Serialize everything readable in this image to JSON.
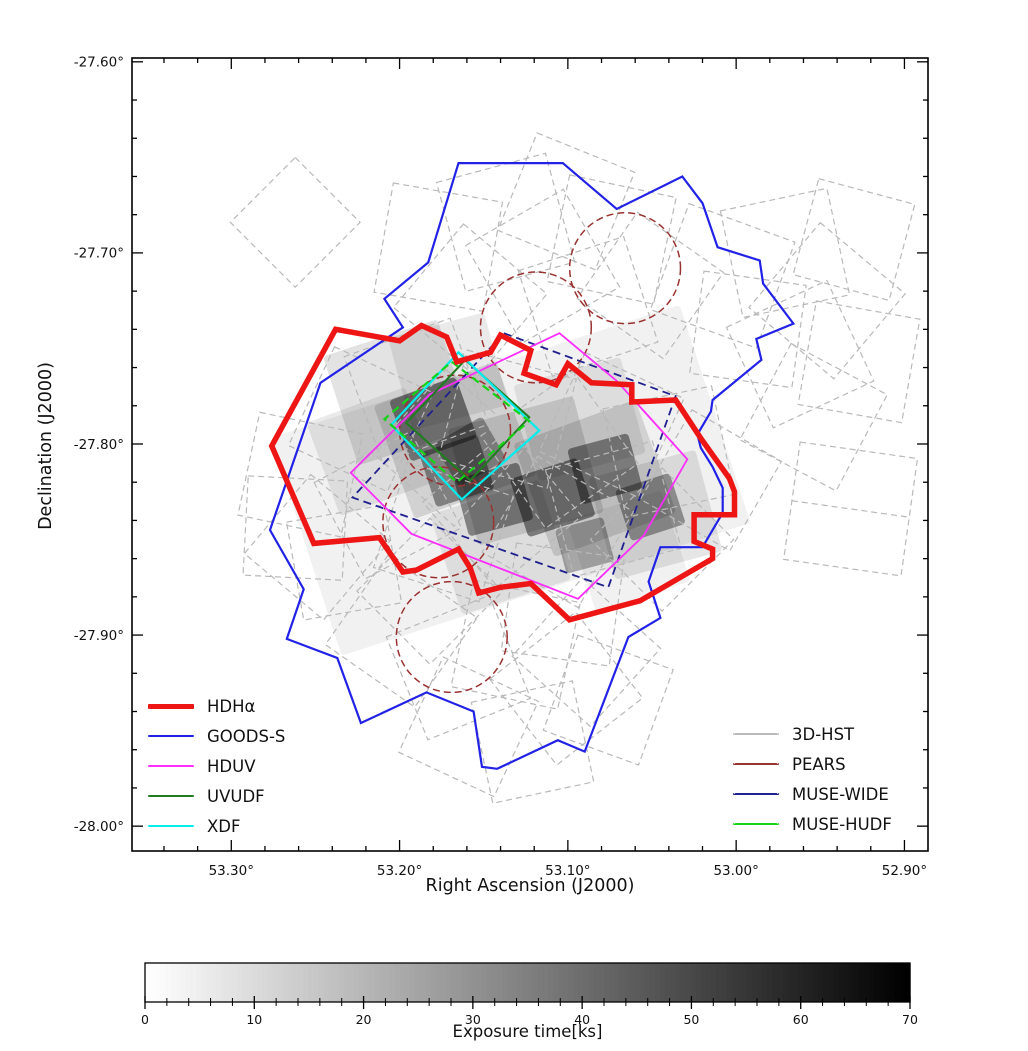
{
  "axes": {
    "xlabel": "Right Ascension (J2000)",
    "ylabel": "Declination (J2000)",
    "ra_left": 53.359,
    "ra_right": 52.886,
    "dec_top": -27.598,
    "dec_bottom": -28.013,
    "x_ticks": [
      {
        "v": 53.3,
        "label": "53.30°"
      },
      {
        "v": 53.2,
        "label": "53.20°"
      },
      {
        "v": 53.1,
        "label": "53.10°"
      },
      {
        "v": 53.0,
        "label": "53.00°"
      },
      {
        "v": 52.9,
        "label": "52.90°"
      }
    ],
    "y_ticks": [
      {
        "v": -27.6,
        "label": "-27.60°"
      },
      {
        "v": -27.7,
        "label": "-27.70°"
      },
      {
        "v": -27.8,
        "label": "-27.80°"
      },
      {
        "v": -27.9,
        "label": "-27.90°"
      },
      {
        "v": -28.0,
        "label": "-28.00°"
      }
    ],
    "minor_step": 0.02
  },
  "colorbar": {
    "label": "Exposure time[ks]",
    "min": 0,
    "max": 70,
    "ticks": [
      {
        "v": 0,
        "label": "0"
      },
      {
        "v": 10,
        "label": "10"
      },
      {
        "v": 20,
        "label": "20"
      },
      {
        "v": 30,
        "label": "30"
      },
      {
        "v": 40,
        "label": "40"
      },
      {
        "v": 50,
        "label": "50"
      },
      {
        "v": 60,
        "label": "60"
      },
      {
        "v": 70,
        "label": "70"
      }
    ],
    "minor_step": 2,
    "cmap_left": "#ffffff",
    "cmap_right": "#000000"
  },
  "legend_left": [
    {
      "label": "HDHα",
      "color": "#ee1515",
      "style": "solid",
      "weight": 5
    },
    {
      "label": "GOODS-S",
      "color": "#2222e6",
      "style": "solid",
      "weight": 2.5
    },
    {
      "label": "HDUV",
      "color": "#fb2efb",
      "style": "solid",
      "weight": 2.5
    },
    {
      "label": "UVUDF",
      "color": "#1e7d1e",
      "style": "solid",
      "weight": 2.5
    },
    {
      "label": "XDF",
      "color": "#00eded",
      "style": "solid",
      "weight": 2.5
    }
  ],
  "legend_right": [
    {
      "label": "3D-HST",
      "color": "#b9b9b9",
      "style": "dashed",
      "weight": 2
    },
    {
      "label": "PEARS",
      "color": "#993230",
      "style": "dashed",
      "weight": 2
    },
    {
      "label": "MUSE-WIDE",
      "color": "#1f1f8f",
      "style": "dashed",
      "weight": 2
    },
    {
      "label": "MUSE-HUDF",
      "color": "#15d415",
      "style": "dashed",
      "weight": 2
    }
  ],
  "chart_data": {
    "type": "heatmap",
    "title": "",
    "xlabel": "Right Ascension (J2000)",
    "ylabel": "Declination (J2000)",
    "xlim": [
      53.359,
      52.886
    ],
    "ylim": [
      -28.013,
      -27.598
    ],
    "colorbar_label": "Exposure time[ks]",
    "colorbar_range": [
      0,
      70
    ],
    "surveys": [
      {
        "name": "3D-HST",
        "color": "#b9b9b9",
        "line_style": "dashed",
        "width": 1.2,
        "kind": "fields",
        "fields": [
          {
            "ra": 53.262,
            "dec": -27.684,
            "s": 0.048,
            "a": 45
          },
          {
            "ra": 53.177,
            "dec": -27.697,
            "s": 0.058,
            "a": 10
          },
          {
            "ra": 53.137,
            "dec": -27.684,
            "s": 0.059,
            "a": -15
          },
          {
            "ra": 53.101,
            "dec": -27.673,
            "s": 0.055,
            "a": 22
          },
          {
            "ra": 53.158,
            "dec": -27.725,
            "s": 0.057,
            "a": 40
          },
          {
            "ra": 53.115,
            "dec": -27.707,
            "s": 0.059,
            "a": -30
          },
          {
            "ra": 53.074,
            "dec": -27.693,
            "s": 0.057,
            "a": 12
          },
          {
            "ra": 53.088,
            "dec": -27.728,
            "s": 0.058,
            "a": -18
          },
          {
            "ra": 53.051,
            "dec": -27.717,
            "s": 0.055,
            "a": 35
          },
          {
            "ra": 53.008,
            "dec": -27.712,
            "s": 0.059,
            "a": 20
          },
          {
            "ra": 52.971,
            "dec": -27.7,
            "s": 0.057,
            "a": -12
          },
          {
            "ra": 52.946,
            "dec": -27.725,
            "s": 0.058,
            "a": 40
          },
          {
            "ra": 52.927,
            "dec": -27.757,
            "s": 0.055,
            "a": 10
          },
          {
            "ra": 52.962,
            "dec": -27.753,
            "s": 0.058,
            "a": -25
          },
          {
            "ra": 52.993,
            "dec": -27.74,
            "s": 0.054,
            "a": 8
          },
          {
            "ra": 52.93,
            "dec": -27.693,
            "s": 0.052,
            "a": 15
          },
          {
            "ra": 52.954,
            "dec": -27.786,
            "s": 0.057,
            "a": 28
          },
          {
            "ra": 53.259,
            "dec": -27.816,
            "s": 0.055,
            "a": 12
          },
          {
            "ra": 53.262,
            "dec": -27.844,
            "s": 0.052,
            "a": 3
          },
          {
            "ra": 53.249,
            "dec": -27.854,
            "s": 0.054,
            "a": 40
          },
          {
            "ra": 53.223,
            "dec": -27.787,
            "s": 0.057,
            "a": 25
          },
          {
            "ra": 53.19,
            "dec": -27.772,
            "s": 0.059,
            "a": -20
          },
          {
            "ra": 53.17,
            "dec": -27.802,
            "s": 0.058,
            "a": 42
          },
          {
            "ra": 53.136,
            "dec": -27.787,
            "s": 0.059,
            "a": 15
          },
          {
            "ra": 53.105,
            "dec": -27.803,
            "s": 0.059,
            "a": -35
          },
          {
            "ra": 53.074,
            "dec": -27.79,
            "s": 0.057,
            "a": 25
          },
          {
            "ra": 53.04,
            "dec": -27.804,
            "s": 0.058,
            "a": -12
          },
          {
            "ra": 53.015,
            "dec": -27.819,
            "s": 0.054,
            "a": 30
          },
          {
            "ra": 53.207,
            "dec": -27.832,
            "s": 0.057,
            "a": -28
          },
          {
            "ra": 53.174,
            "dec": -27.846,
            "s": 0.058,
            "a": 18
          },
          {
            "ra": 53.139,
            "dec": -27.834,
            "s": 0.059,
            "a": -40
          },
          {
            "ra": 53.106,
            "dec": -27.846,
            "s": 0.058,
            "a": 30
          },
          {
            "ra": 53.073,
            "dec": -27.834,
            "s": 0.058,
            "a": -15
          },
          {
            "ra": 53.044,
            "dec": -27.85,
            "s": 0.053,
            "a": 45
          },
          {
            "ra": 53.233,
            "dec": -27.862,
            "s": 0.052,
            "a": -10
          },
          {
            "ra": 53.199,
            "dec": -27.898,
            "s": 0.057,
            "a": 35
          },
          {
            "ra": 53.165,
            "dec": -27.917,
            "s": 0.058,
            "a": -22
          },
          {
            "ra": 53.131,
            "dec": -27.905,
            "s": 0.057,
            "a": 12
          },
          {
            "ra": 53.101,
            "dec": -27.928,
            "s": 0.057,
            "a": -38
          },
          {
            "ra": 53.159,
            "dec": -27.948,
            "s": 0.055,
            "a": 25
          },
          {
            "ra": 53.121,
            "dec": -27.956,
            "s": 0.054,
            "a": -12
          },
          {
            "ra": 53.089,
            "dec": -27.909,
            "s": 0.055,
            "a": 42
          },
          {
            "ra": 53.182,
            "dec": -27.877,
            "s": 0.054,
            "a": -45
          },
          {
            "ra": 53.076,
            "dec": -27.934,
            "s": 0.053,
            "a": 20
          },
          {
            "ra": 53.103,
            "dec": -27.884,
            "s": 0.057,
            "a": 8
          },
          {
            "ra": 52.932,
            "dec": -27.834,
            "s": 0.062,
            "a": 8,
            "split": true
          }
        ]
      },
      {
        "name": "PEARS",
        "color": "#993230",
        "line_style": "dashed",
        "width": 1.5,
        "kind": "circles",
        "circles": [
          {
            "ra": 53.066,
            "dec": -27.708,
            "r": 0.029
          },
          {
            "ra": 53.119,
            "dec": -27.739,
            "r": 0.029
          },
          {
            "ra": 53.167,
            "dec": -27.793,
            "r": 0.029
          },
          {
            "ra": 53.177,
            "dec": -27.841,
            "r": 0.029
          },
          {
            "ra": 53.169,
            "dec": -27.901,
            "r": 0.029
          }
        ]
      },
      {
        "name": "MUSE-WIDE",
        "color": "#1f1f8f",
        "line_style": "dashed",
        "width": 1.8,
        "kind": "polygon",
        "pts": [
          [
            53.138,
            -27.742
          ],
          [
            53.036,
            -27.775
          ],
          [
            53.076,
            -27.875
          ],
          [
            53.228,
            -27.828
          ]
        ]
      },
      {
        "name": "GOODS-S",
        "color": "#2222e6",
        "line_style": "solid",
        "width": 2.2,
        "kind": "polygon",
        "pts": [
          [
            53.165,
            -27.653
          ],
          [
            53.103,
            -27.653
          ],
          [
            53.071,
            -27.677
          ],
          [
            53.032,
            -27.66
          ],
          [
            53.02,
            -27.674
          ],
          [
            53.011,
            -27.697
          ],
          [
            52.986,
            -27.704
          ],
          [
            52.984,
            -27.716
          ],
          [
            52.966,
            -27.737
          ],
          [
            52.988,
            -27.745
          ],
          [
            52.985,
            -27.756
          ],
          [
            53.014,
            -27.777
          ],
          [
            53.015,
            -27.783
          ],
          [
            53.023,
            -27.795
          ],
          [
            53.021,
            -27.802
          ],
          [
            53.014,
            -27.812
          ],
          [
            53.008,
            -27.823
          ],
          [
            53.008,
            -27.836
          ],
          [
            53.02,
            -27.854
          ],
          [
            53.045,
            -27.854
          ],
          [
            53.052,
            -27.872
          ],
          [
            53.045,
            -27.891
          ],
          [
            53.064,
            -27.901
          ],
          [
            53.09,
            -27.961
          ],
          [
            53.106,
            -27.955
          ],
          [
            53.142,
            -27.97
          ],
          [
            53.151,
            -27.969
          ],
          [
            53.156,
            -27.94
          ],
          [
            53.184,
            -27.93
          ],
          [
            53.223,
            -27.946
          ],
          [
            53.237,
            -27.912
          ],
          [
            53.267,
            -27.902
          ],
          [
            53.257,
            -27.876
          ],
          [
            53.277,
            -27.845
          ],
          [
            53.247,
            -27.768
          ],
          [
            53.198,
            -27.739
          ],
          [
            53.209,
            -27.724
          ],
          [
            53.183,
            -27.705
          ]
        ]
      },
      {
        "name": "HDUV",
        "color": "#fb2efb",
        "line_style": "solid",
        "width": 1.8,
        "kind": "polygon",
        "pts": [
          [
            53.105,
            -27.742
          ],
          [
            53.071,
            -27.767
          ],
          [
            53.029,
            -27.808
          ],
          [
            53.055,
            -27.848
          ],
          [
            53.094,
            -27.881
          ],
          [
            53.193,
            -27.847
          ],
          [
            53.229,
            -27.815
          ],
          [
            53.182,
            -27.774
          ]
        ]
      },
      {
        "name": "UVUDF",
        "color": "#1e7d1e",
        "line_style": "solid",
        "width": 2,
        "kind": "polygon",
        "pts": [
          [
            53.161,
            -27.756
          ],
          [
            53.123,
            -27.786
          ],
          [
            53.158,
            -27.819
          ],
          [
            53.196,
            -27.789
          ]
        ]
      },
      {
        "name": "XDF",
        "color": "#00eded",
        "line_style": "solid",
        "width": 2.2,
        "kind": "polygon",
        "pts": [
          [
            53.165,
            -27.752
          ],
          [
            53.117,
            -27.793
          ],
          [
            53.163,
            -27.829
          ],
          [
            53.205,
            -27.79
          ]
        ]
      },
      {
        "name": "MUSE-HUDF",
        "color": "#15d415",
        "line_style": "dashed",
        "width": 2.2,
        "kind": "polygon",
        "pts": [
          [
            53.169,
            -27.757
          ],
          [
            53.123,
            -27.788
          ],
          [
            53.166,
            -27.82
          ],
          [
            53.209,
            -27.787
          ]
        ]
      },
      {
        "name": "HDHα",
        "color": "#ee1515",
        "line_style": "solid",
        "width": 5.5,
        "kind": "polygon",
        "pts": [
          [
            53.276,
            -27.801
          ],
          [
            53.238,
            -27.74
          ],
          [
            53.2,
            -27.746
          ],
          [
            53.187,
            -27.738
          ],
          [
            53.172,
            -27.744
          ],
          [
            53.166,
            -27.757
          ],
          [
            53.146,
            -27.752
          ],
          [
            53.14,
            -27.743
          ],
          [
            53.122,
            -27.751
          ],
          [
            53.126,
            -27.763
          ],
          [
            53.107,
            -27.769
          ],
          [
            53.1,
            -27.758
          ],
          [
            53.086,
            -27.768
          ],
          [
            53.062,
            -27.769
          ],
          [
            53.062,
            -27.778
          ],
          [
            53.036,
            -27.777
          ],
          [
            53.021,
            -27.797
          ],
          [
            53.004,
            -27.818
          ],
          [
            53.001,
            -27.825
          ],
          [
            53.001,
            -27.837
          ],
          [
            53.025,
            -27.837
          ],
          [
            53.025,
            -27.851
          ],
          [
            53.014,
            -27.855
          ],
          [
            53.014,
            -27.86
          ],
          [
            53.057,
            -27.882
          ],
          [
            53.099,
            -27.892
          ],
          [
            53.122,
            -27.873
          ],
          [
            53.14,
            -27.875
          ],
          [
            53.153,
            -27.878
          ],
          [
            53.158,
            -27.865
          ],
          [
            53.165,
            -27.855
          ],
          [
            53.19,
            -27.866
          ],
          [
            53.198,
            -27.867
          ],
          [
            53.212,
            -27.849
          ],
          [
            53.251,
            -27.852
          ]
        ]
      }
    ],
    "exposure_map": {
      "units": "ks",
      "max_ks": 70,
      "patches": [
        {
          "ra": 53.134,
          "dec": -27.819,
          "w": 0.225,
          "h": 0.12,
          "a": -18,
          "ks": 4
        },
        {
          "ra": 53.201,
          "dec": -27.773,
          "w": 0.063,
          "h": 0.06,
          "a": -18,
          "ks": 8
        },
        {
          "ra": 53.167,
          "dec": -27.798,
          "w": 0.068,
          "h": 0.063,
          "a": -20,
          "ks": 9
        },
        {
          "ra": 53.125,
          "dec": -27.814,
          "w": 0.068,
          "h": 0.063,
          "a": -15,
          "ks": 9
        },
        {
          "ra": 53.084,
          "dec": -27.818,
          "w": 0.068,
          "h": 0.063,
          "a": -20,
          "ks": 9
        },
        {
          "ra": 53.048,
          "dec": -27.837,
          "w": 0.058,
          "h": 0.055,
          "a": -15,
          "ks": 7
        },
        {
          "ra": 53.216,
          "dec": -27.804,
          "w": 0.055,
          "h": 0.052,
          "a": -20,
          "ks": 6
        },
        {
          "ra": 53.14,
          "dec": -27.854,
          "w": 0.06,
          "h": 0.055,
          "a": -18,
          "ks": 6
        },
        {
          "ra": 53.171,
          "dec": -27.762,
          "w": 0.052,
          "h": 0.05,
          "a": -15,
          "ks": 6
        },
        {
          "ra": 53.093,
          "dec": -27.787,
          "w": 0.058,
          "h": 0.052,
          "a": -15,
          "ks": 6
        },
        {
          "ra": 53.064,
          "dec": -27.856,
          "w": 0.052,
          "h": 0.05,
          "a": -18,
          "ks": 4
        },
        {
          "ra": 53.18,
          "dec": -27.787,
          "w": 0.037,
          "h": 0.034,
          "a": -20,
          "ks": 30
        },
        {
          "ra": 53.166,
          "dec": -27.814,
          "w": 0.032,
          "h": 0.03,
          "a": -18,
          "ks": 28
        },
        {
          "ra": 53.144,
          "dec": -27.829,
          "w": 0.035,
          "h": 0.031,
          "a": -15,
          "ks": 30
        },
        {
          "ra": 53.109,
          "dec": -27.828,
          "w": 0.037,
          "h": 0.032,
          "a": -18,
          "ks": 32
        },
        {
          "ra": 53.078,
          "dec": -27.813,
          "w": 0.033,
          "h": 0.03,
          "a": -15,
          "ks": 30
        },
        {
          "ra": 53.051,
          "dec": -27.833,
          "w": 0.03,
          "h": 0.028,
          "a": -18,
          "ks": 26
        },
        {
          "ra": 53.09,
          "dec": -27.853,
          "w": 0.026,
          "h": 0.024,
          "a": -15,
          "ks": 22
        },
        {
          "ra": 53.158,
          "dec": -27.804,
          "w": 0.029,
          "h": 0.026,
          "a": -30,
          "ks": 24
        }
      ]
    }
  }
}
